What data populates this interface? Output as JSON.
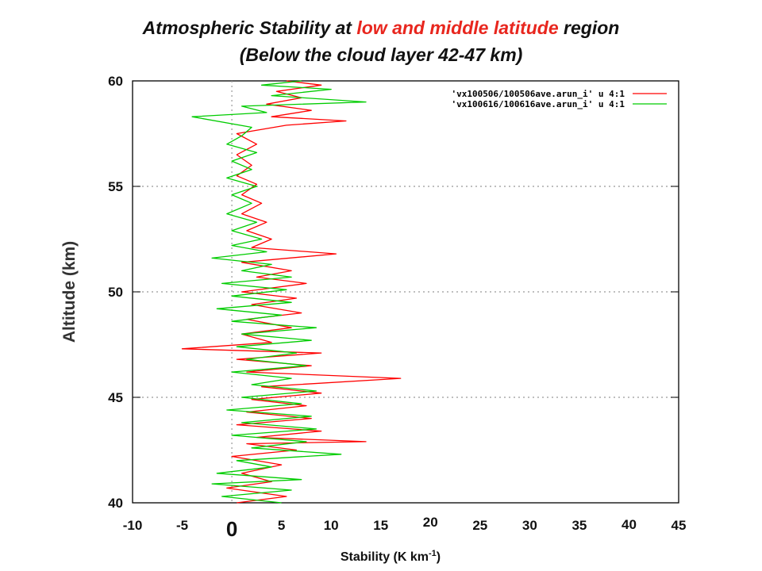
{
  "title": {
    "line1_pre": "Atmospheric Stability at ",
    "line1_highlight": "low and middle latitude",
    "line1_post": " region",
    "line2": "(Below the cloud layer 42-47 km)"
  },
  "colors": {
    "highlight": "#e8261e",
    "series1": "#ff0000",
    "series2": "#00cc00",
    "zero_label": "#ff0000"
  },
  "chart_data": {
    "type": "line",
    "title": "Atmospheric Stability at low and middle latitude region (Below the cloud layer 42-47 km)",
    "xlabel": "Stability (K km",
    "xlabel_sup": "-1",
    "xlabel_end": ")",
    "ylabel": "Altitude (km)",
    "xlim": [
      -10,
      45
    ],
    "ylim": [
      40,
      60
    ],
    "x_ticks": [
      "-10",
      "-5",
      "0",
      "5",
      "10",
      "15",
      "20",
      "25",
      "30",
      "35",
      "40",
      "45"
    ],
    "y_ticks": [
      "40",
      "45",
      "50",
      "55",
      "60"
    ],
    "grid": true,
    "legend_position": "top-right",
    "series": [
      {
        "name": "'vx100506/100506ave.arun_i' u 4:1",
        "color": "#ff0000",
        "points": [
          [
            0.5,
            40.0
          ],
          [
            5.5,
            40.3
          ],
          [
            -0.5,
            40.7
          ],
          [
            4.0,
            41.0
          ],
          [
            1.0,
            41.4
          ],
          [
            5.0,
            41.8
          ],
          [
            0.0,
            42.2
          ],
          [
            6.5,
            42.5
          ],
          [
            1.5,
            42.8
          ],
          [
            13.5,
            42.9
          ],
          [
            2.5,
            43.1
          ],
          [
            9.0,
            43.4
          ],
          [
            0.5,
            43.7
          ],
          [
            8.0,
            44.0
          ],
          [
            1.5,
            44.3
          ],
          [
            7.5,
            44.6
          ],
          [
            2.0,
            44.9
          ],
          [
            9.0,
            45.2
          ],
          [
            3.0,
            45.5
          ],
          [
            17.0,
            45.9
          ],
          [
            1.5,
            46.2
          ],
          [
            8.0,
            46.5
          ],
          [
            0.5,
            46.8
          ],
          [
            9.0,
            47.1
          ],
          [
            -5.0,
            47.3
          ],
          [
            4.0,
            47.6
          ],
          [
            1.0,
            48.0
          ],
          [
            6.0,
            48.3
          ],
          [
            1.5,
            48.7
          ],
          [
            7.0,
            49.0
          ],
          [
            2.0,
            49.4
          ],
          [
            6.5,
            49.7
          ],
          [
            1.0,
            50.0
          ],
          [
            7.5,
            50.4
          ],
          [
            2.5,
            50.7
          ],
          [
            6.0,
            51.0
          ],
          [
            1.0,
            51.4
          ],
          [
            10.5,
            51.8
          ],
          [
            2.0,
            52.1
          ],
          [
            4.0,
            52.5
          ],
          [
            1.5,
            52.9
          ],
          [
            3.5,
            53.3
          ],
          [
            1.0,
            53.7
          ],
          [
            3.0,
            54.2
          ],
          [
            1.0,
            54.6
          ],
          [
            2.5,
            55.1
          ],
          [
            0.5,
            55.5
          ],
          [
            2.0,
            56.0
          ],
          [
            0.5,
            56.5
          ],
          [
            2.5,
            57.0
          ],
          [
            0.5,
            57.5
          ],
          [
            5.5,
            57.9
          ],
          [
            11.5,
            58.1
          ],
          [
            4.0,
            58.3
          ],
          [
            8.0,
            58.6
          ],
          [
            3.5,
            58.9
          ],
          [
            7.0,
            59.2
          ],
          [
            4.5,
            59.5
          ],
          [
            9.0,
            59.8
          ],
          [
            5.5,
            60.0
          ]
        ]
      },
      {
        "name": "'vx100616/100616ave.arun_i' u 4:1",
        "color": "#00cc00",
        "points": [
          [
            5.0,
            40.0
          ],
          [
            -1.0,
            40.3
          ],
          [
            6.0,
            40.6
          ],
          [
            -2.0,
            40.9
          ],
          [
            7.0,
            41.1
          ],
          [
            -1.5,
            41.4
          ],
          [
            4.0,
            41.7
          ],
          [
            0.5,
            42.0
          ],
          [
            11.0,
            42.3
          ],
          [
            2.0,
            42.6
          ],
          [
            7.5,
            42.9
          ],
          [
            0.0,
            43.2
          ],
          [
            8.5,
            43.5
          ],
          [
            1.0,
            43.8
          ],
          [
            8.0,
            44.1
          ],
          [
            -0.5,
            44.4
          ],
          [
            7.0,
            44.7
          ],
          [
            1.0,
            45.0
          ],
          [
            8.5,
            45.3
          ],
          [
            2.0,
            45.6
          ],
          [
            6.0,
            45.9
          ],
          [
            0.0,
            46.2
          ],
          [
            7.5,
            46.5
          ],
          [
            1.5,
            46.8
          ],
          [
            6.5,
            47.1
          ],
          [
            0.5,
            47.4
          ],
          [
            8.0,
            47.7
          ],
          [
            1.0,
            48.0
          ],
          [
            8.5,
            48.3
          ],
          [
            0.0,
            48.6
          ],
          [
            5.0,
            48.9
          ],
          [
            -1.5,
            49.2
          ],
          [
            6.0,
            49.5
          ],
          [
            0.0,
            49.8
          ],
          [
            5.5,
            50.1
          ],
          [
            -1.0,
            50.4
          ],
          [
            6.0,
            50.7
          ],
          [
            1.0,
            51.0
          ],
          [
            4.0,
            51.3
          ],
          [
            -2.0,
            51.6
          ],
          [
            3.5,
            51.9
          ],
          [
            0.0,
            52.2
          ],
          [
            3.0,
            52.5
          ],
          [
            0.0,
            52.9
          ],
          [
            2.5,
            53.3
          ],
          [
            -0.5,
            53.7
          ],
          [
            2.0,
            54.2
          ],
          [
            0.0,
            54.6
          ],
          [
            2.5,
            55.0
          ],
          [
            -0.5,
            55.4
          ],
          [
            2.0,
            55.8
          ],
          [
            0.0,
            56.2
          ],
          [
            2.5,
            56.6
          ],
          [
            -0.5,
            57.0
          ],
          [
            1.0,
            57.4
          ],
          [
            2.0,
            57.8
          ],
          [
            -4.0,
            58.3
          ],
          [
            3.5,
            58.5
          ],
          [
            1.0,
            58.8
          ],
          [
            13.5,
            59.0
          ],
          [
            4.0,
            59.3
          ],
          [
            10.0,
            59.6
          ],
          [
            3.0,
            59.8
          ],
          [
            7.0,
            60.0
          ]
        ]
      }
    ]
  }
}
